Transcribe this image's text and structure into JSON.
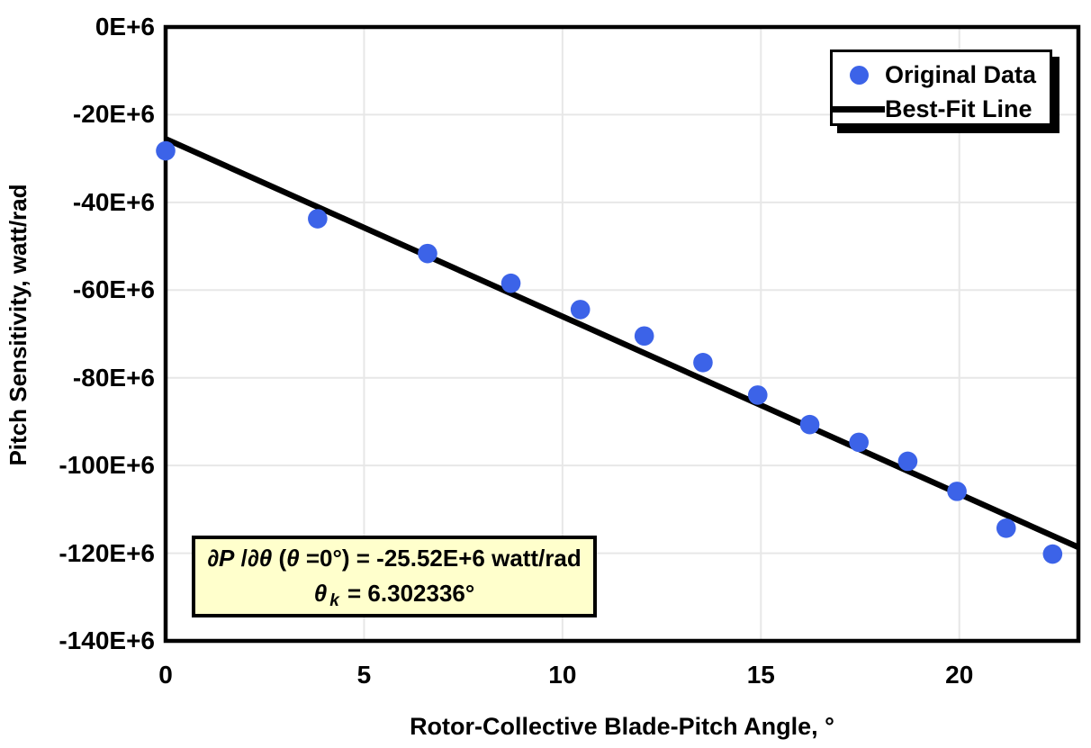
{
  "chart_data": {
    "type": "scatter",
    "title": "",
    "xlabel": "Rotor-Collective Blade-Pitch Angle, °",
    "ylabel": "Pitch Sensitivity, watt/rad",
    "grid": true,
    "x_axis": {
      "min": 0,
      "max": 23,
      "tick_values": [
        0,
        5,
        10,
        15,
        20
      ],
      "tick_labels": [
        "0",
        "5",
        "10",
        "15",
        "20"
      ]
    },
    "y_axis": {
      "unit_scale": "E+6",
      "min_e6": -140,
      "max_e6": 0,
      "tick_values_e6": [
        0,
        -20,
        -40,
        -60,
        -80,
        -100,
        -120,
        -140
      ],
      "tick_labels": [
        "0E+6",
        "-20E+6",
        "-40E+6",
        "-60E+6",
        "-80E+6",
        "-100E+6",
        "-120E+6",
        "-140E+6"
      ]
    },
    "colors": {
      "marker": "#3C63E8",
      "fit_line": "#000000",
      "grid": "#E7E7E7",
      "frame": "#000000",
      "annotation_bg": "#FFFFCC"
    },
    "series": [
      {
        "name": "Original Data",
        "type": "scatter",
        "x": [
          0.0,
          3.83,
          6.6,
          8.7,
          10.45,
          12.06,
          13.54,
          14.92,
          16.23,
          17.47,
          18.7,
          19.94,
          21.18,
          22.35
        ],
        "y_e6": [
          -28.24,
          -43.73,
          -51.66,
          -58.44,
          -64.44,
          -70.46,
          -76.53,
          -83.94,
          -90.67,
          -94.71,
          -99.04,
          -105.9,
          -114.3,
          -120.2
        ]
      },
      {
        "name": "Best-Fit Line",
        "type": "line",
        "x": [
          0,
          23
        ],
        "y_e6": [
          -25.52,
          -118.65
        ]
      }
    ],
    "legend": {
      "position": "top-right",
      "entries": [
        {
          "label": "Original Data",
          "marker": "dot"
        },
        {
          "label": "Best-Fit Line",
          "marker": "line"
        }
      ]
    },
    "annotation": {
      "lines_plain": [
        "∂P/∂θ (θ=0°) = -25.52E+6 watt/rad",
        "θk = 6.302336°"
      ],
      "lines_rich": [
        [
          {
            "t": "∂P",
            "i": true
          },
          {
            "t": " /",
            "i": false
          },
          {
            "t": "∂θ",
            "i": true
          },
          {
            "t": " (",
            "i": false
          },
          {
            "t": "θ",
            "i": true
          },
          {
            "t": " =0°) = -25.52E+6 watt/rad",
            "i": false
          }
        ],
        [
          {
            "t": "θ",
            "i": true
          },
          {
            "t": "k",
            "i": true,
            "sub": true
          },
          {
            "t": " = 6.302336°",
            "i": false
          }
        ]
      ]
    }
  }
}
